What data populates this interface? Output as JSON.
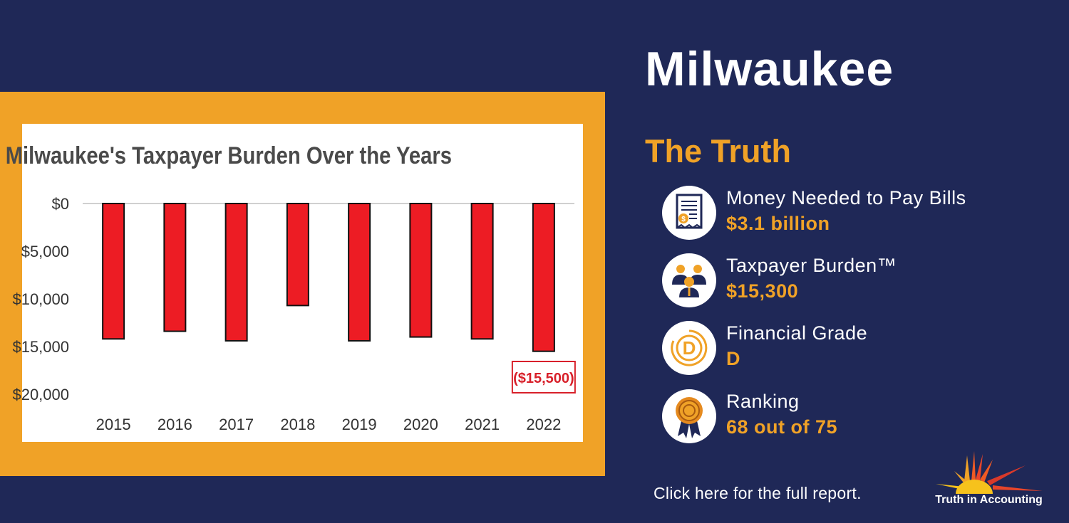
{
  "city": "Milwaukee",
  "section_title": "The Truth",
  "stats": [
    {
      "label": "Money Needed to Pay Bills",
      "value": "$3.1 billion",
      "icon": "bill-icon"
    },
    {
      "label": "Taxpayer Burden™",
      "value": "$15,300",
      "icon": "taxpayers-icon"
    },
    {
      "label": "Financial Grade",
      "value": "D",
      "icon": "grade-icon"
    },
    {
      "label": "Ranking",
      "value": "68 out of 75",
      "icon": "ribbon-icon"
    }
  ],
  "report_link": "Click here for the full report.",
  "brand": "Truth in Accounting",
  "colors": {
    "background": "#1f2857",
    "accent": "#f0a227",
    "bar": "#ed1c24",
    "text": "#ffffff"
  },
  "chart_data": {
    "type": "bar",
    "title": "Milwaukee's Taxpayer Burden Over the Years",
    "categories": [
      "2015",
      "2016",
      "2017",
      "2018",
      "2019",
      "2020",
      "2021",
      "2022"
    ],
    "values": [
      -14200,
      -13400,
      -14400,
      -10700,
      -14400,
      -14000,
      -14200,
      -15500
    ],
    "yticks": [
      0,
      -5000,
      -10000,
      -15000,
      -20000
    ],
    "ytick_labels": [
      "$0",
      "$5,000",
      "$10,000",
      "$15,000",
      "$20,000"
    ],
    "ylim": [
      -20000,
      0
    ],
    "annotation": {
      "category": "2022",
      "text": "($15,500)"
    },
    "xlabel": "",
    "ylabel": "",
    "grid": false
  }
}
